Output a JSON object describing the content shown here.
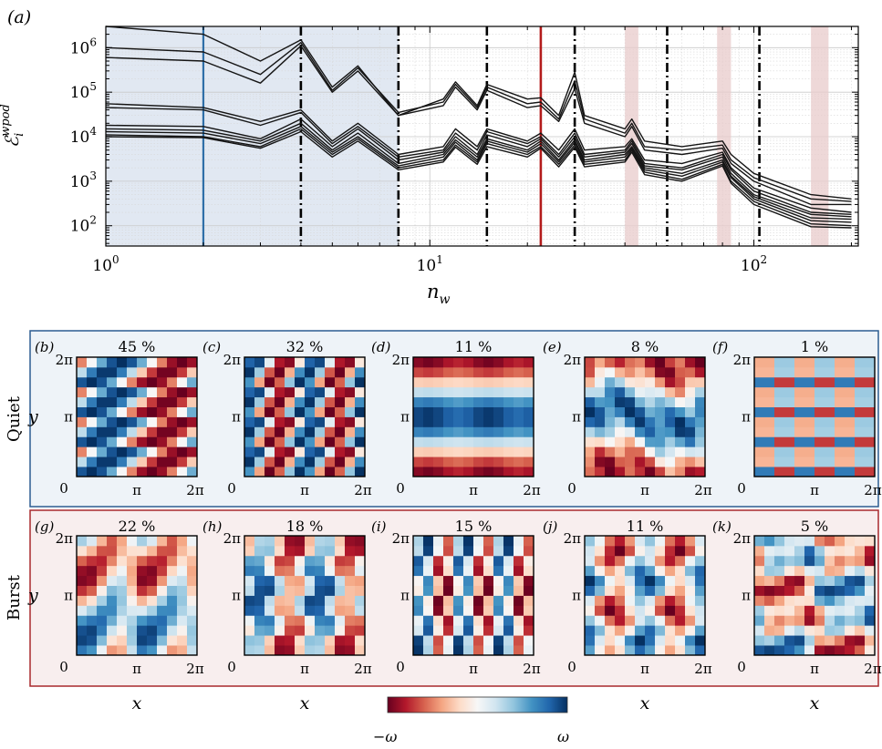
{
  "panel_a": {
    "panel_label": "(a)",
    "ylabel_main": "ℰ",
    "ylabel_sub": "i",
    "ylabel_sup": "wpod",
    "xlabel_main": "n",
    "xlabel_sub": "w",
    "x_ticks": [
      {
        "value": 1,
        "base": "10",
        "exp": "0"
      },
      {
        "value": 10,
        "base": "10",
        "exp": "1"
      },
      {
        "value": 100,
        "base": "10",
        "exp": "2"
      }
    ],
    "y_ticks": [
      {
        "value": 100,
        "base": "10",
        "exp": "2"
      },
      {
        "value": 1000,
        "base": "10",
        "exp": "3"
      },
      {
        "value": 10000,
        "base": "10",
        "exp": "4"
      },
      {
        "value": 100000,
        "base": "10",
        "exp": "5"
      },
      {
        "value": 1000000,
        "base": "10",
        "exp": "6"
      }
    ]
  },
  "chart_data": {
    "type": "line",
    "x_scale": "log",
    "y_scale": "log",
    "xlim": [
      1,
      210
    ],
    "ylim": [
      35,
      3000000
    ],
    "grid": true,
    "shaded_region": {
      "x_from": 1,
      "x_to": 8,
      "color": "#e1e8f2"
    },
    "blue_line_x": 2,
    "red_line_x": 22,
    "dashdot_lines_x": [
      4,
      8,
      15,
      28,
      54,
      104
    ],
    "pink_bands": [
      [
        40,
        44
      ],
      [
        77,
        85
      ],
      [
        150,
        170
      ]
    ],
    "colors": {
      "blue": "#2f6fa8",
      "red": "#b31b1b",
      "line": "#151515",
      "pink": "#e8cbcb"
    },
    "series": [
      {
        "values": {
          "1": 3000000,
          "2": 2000000,
          "3": 500000,
          "4": 1500000,
          "5": 130000,
          "6": 390000,
          "8": 30000,
          "11": 70000,
          "12": 170000,
          "14": 50000,
          "15": 150000,
          "20": 70000,
          "22": 75000,
          "25": 30000,
          "28": 280000,
          "30": 30000,
          "40": 15000,
          "42": 25000,
          "46": 8000,
          "60": 6000,
          "80": 8000,
          "85": 4000,
          "100": 1500,
          "150": 500,
          "200": 400
        }
      },
      {
        "values": {
          "1": 1000000,
          "2": 800000,
          "3": 250000,
          "4": 1300000,
          "5": 110000,
          "6": 350000,
          "8": 35000,
          "11": 60000,
          "12": 150000,
          "14": 45000,
          "15": 130000,
          "20": 55000,
          "22": 60000,
          "25": 25000,
          "28": 180000,
          "30": 25000,
          "40": 12000,
          "42": 20000,
          "46": 6000,
          "60": 5000,
          "80": 6500,
          "85": 3000,
          "100": 1200,
          "150": 400,
          "200": 350
        }
      },
      {
        "values": {
          "1": 600000,
          "2": 500000,
          "3": 160000,
          "4": 1100000,
          "5": 100000,
          "6": 300000,
          "8": 30000,
          "11": 50000,
          "12": 130000,
          "14": 40000,
          "15": 110000,
          "20": 45000,
          "22": 50000,
          "25": 22000,
          "28": 120000,
          "30": 20000,
          "40": 10000,
          "42": 17000,
          "46": 5000,
          "60": 4000,
          "80": 5500,
          "85": 2500,
          "100": 1000,
          "150": 300,
          "200": 300
        }
      },
      {
        "values": {
          "1": 55000,
          "2": 45000,
          "3": 22000,
          "4": 40000,
          "5": 8000,
          "6": 20000,
          "8": 4000,
          "11": 6000,
          "12": 15000,
          "14": 6000,
          "15": 15000,
          "20": 8000,
          "22": 12000,
          "25": 5000,
          "28": 15000,
          "30": 5000,
          "40": 6000,
          "42": 9000,
          "46": 3000,
          "60": 2500,
          "80": 4500,
          "85": 2000,
          "100": 700,
          "150": 250,
          "200": 200
        }
      },
      {
        "values": {
          "1": 45000,
          "2": 40000,
          "3": 18000,
          "4": 35000,
          "5": 7000,
          "6": 17000,
          "8": 3500,
          "11": 5000,
          "12": 12000,
          "14": 5000,
          "15": 13000,
          "20": 7000,
          "22": 10000,
          "25": 4000,
          "28": 12000,
          "30": 4000,
          "40": 5000,
          "42": 8000,
          "46": 2500,
          "60": 2000,
          "80": 4000,
          "85": 1800,
          "100": 600,
          "150": 200,
          "200": 180
        }
      },
      {
        "values": {
          "1": 18000,
          "2": 17000,
          "3": 9000,
          "4": 25000,
          "5": 6000,
          "6": 15000,
          "8": 3000,
          "11": 4500,
          "12": 10000,
          "14": 4000,
          "15": 11000,
          "20": 6000,
          "22": 9000,
          "25": 3500,
          "28": 10000,
          "30": 3500,
          "40": 4500,
          "42": 7000,
          "46": 2200,
          "60": 1800,
          "80": 3500,
          "85": 1500,
          "100": 500,
          "150": 180,
          "200": 160
        }
      },
      {
        "values": {
          "1": 15000,
          "2": 14000,
          "3": 8000,
          "4": 20000,
          "5": 5000,
          "6": 12000,
          "8": 2500,
          "11": 4000,
          "12": 8500,
          "14": 3500,
          "15": 9000,
          "20": 5000,
          "22": 8000,
          "25": 3000,
          "28": 8500,
          "30": 3000,
          "40": 4000,
          "42": 6000,
          "46": 2000,
          "60": 1500,
          "80": 3000,
          "85": 1300,
          "100": 450,
          "150": 150,
          "200": 140
        }
      },
      {
        "values": {
          "1": 13000,
          "2": 12000,
          "3": 7000,
          "4": 17000,
          "5": 4500,
          "6": 10000,
          "8": 2200,
          "11": 3500,
          "12": 7500,
          "14": 3000,
          "15": 8000,
          "20": 4500,
          "22": 7000,
          "25": 2700,
          "28": 7500,
          "30": 2700,
          "40": 3500,
          "42": 5500,
          "46": 1800,
          "60": 1300,
          "80": 2700,
          "85": 1200,
          "100": 400,
          "150": 130,
          "200": 120
        }
      },
      {
        "values": {
          "1": 11000,
          "2": 10000,
          "3": 6000,
          "4": 15000,
          "5": 4000,
          "6": 9000,
          "8": 2000,
          "11": 3000,
          "12": 6500,
          "14": 2700,
          "15": 7000,
          "20": 4000,
          "22": 6000,
          "25": 2400,
          "28": 6500,
          "30": 2400,
          "40": 3000,
          "42": 5000,
          "46": 1600,
          "60": 1100,
          "80": 2400,
          "85": 1000,
          "100": 350,
          "150": 110,
          "200": 100
        }
      },
      {
        "values": {
          "1": 10000,
          "2": 9500,
          "3": 5500,
          "4": 13000,
          "5": 3500,
          "6": 8000,
          "8": 1800,
          "11": 2700,
          "12": 5800,
          "14": 2400,
          "15": 6000,
          "20": 3500,
          "22": 5500,
          "25": 2100,
          "28": 5800,
          "30": 2100,
          "40": 2700,
          "42": 4500,
          "46": 1400,
          "60": 1000,
          "80": 2200,
          "85": 900,
          "100": 300,
          "150": 95,
          "200": 90
        }
      }
    ]
  },
  "quiet": {
    "row_label": "Quiet",
    "border_color": "#2b5c91",
    "background": "#eef3f8",
    "panels": [
      {
        "label": "(b)",
        "percent": "45 %"
      },
      {
        "label": "(c)",
        "percent": "32 %"
      },
      {
        "label": "(d)",
        "percent": "11 %"
      },
      {
        "label": "(e)",
        "percent": "8 %"
      },
      {
        "label": "(f)",
        "percent": "1 %"
      }
    ]
  },
  "burst": {
    "row_label": "Burst",
    "border_color": "#a8282d",
    "background": "#f8eeee",
    "panels": [
      {
        "label": "(g)",
        "percent": "22 %"
      },
      {
        "label": "(h)",
        "percent": "18 %"
      },
      {
        "label": "(i)",
        "percent": "15 %"
      },
      {
        "label": "(j)",
        "percent": "11 %"
      },
      {
        "label": "(k)",
        "percent": "5 %"
      }
    ]
  },
  "axes_labels": {
    "tick_zero": "0",
    "tick_pi": "π",
    "tick_2pi": "2π",
    "ylabel": "y",
    "xlabel": "x"
  },
  "colorbar": {
    "min_label": "−ω",
    "max_label": "ω",
    "colors": [
      "#67001f",
      "#b2182b",
      "#d6604d",
      "#f4a582",
      "#fddbc7",
      "#f7f7f7",
      "#d1e5f0",
      "#92c5de",
      "#4393c3",
      "#2166ac",
      "#053061"
    ]
  }
}
